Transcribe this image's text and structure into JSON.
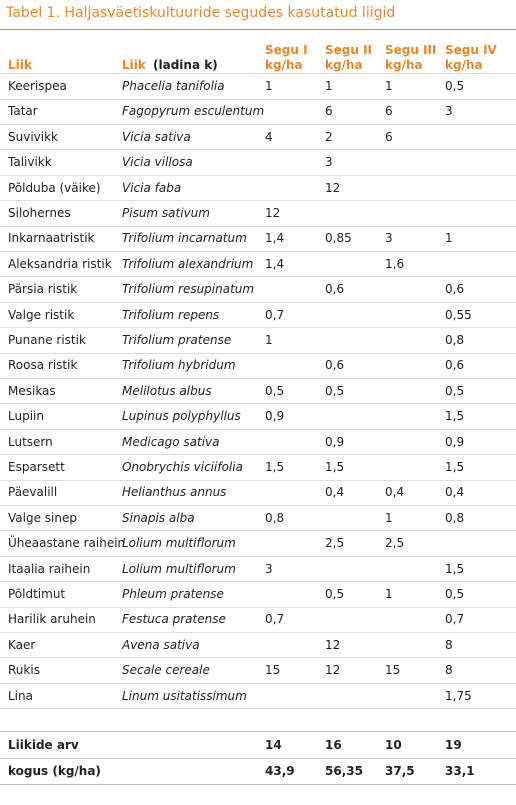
{
  "title": "Tabel 1. Haljasväetiskultuuride segudes kasutatud liigid",
  "table": {
    "header": {
      "species": "Liik",
      "latin": "Liik",
      "latin_note": "(ladina k)",
      "mixes": [
        {
          "name": "Segu I",
          "unit": "kg/ha"
        },
        {
          "name": "Segu II",
          "unit": "kg/ha"
        },
        {
          "name": "Segu III",
          "unit": "kg/ha"
        },
        {
          "name": "Segu IV",
          "unit": "kg/ha"
        }
      ]
    },
    "rows": [
      [
        "Keerispea",
        "Phacelia tanifolia",
        "1",
        "1",
        "1",
        "0,5"
      ],
      [
        "Tatar",
        "Fagopyrum esculentum",
        null,
        "6",
        "6",
        "3"
      ],
      [
        "Suvivikk",
        "Vicia sativa",
        "4",
        "2",
        "6",
        null
      ],
      [
        "Talivikk",
        "Vicia villosa",
        null,
        "3",
        null,
        null
      ],
      [
        "Põlduba (väike)",
        "Vicia faba",
        null,
        "12",
        null,
        null
      ],
      [
        "Silohernes",
        "Pisum sativum",
        "12",
        null,
        null,
        null
      ],
      [
        "Inkarnaatristik",
        "Trifolium incarnatum",
        "1,4",
        "0,85",
        "3",
        "1"
      ],
      [
        "Aleksandria ristik",
        "Trifolium alexandrium",
        "1,4",
        null,
        "1,6",
        null
      ],
      [
        "Pärsia ristik",
        "Trifolium resupinatum",
        null,
        "0,6",
        null,
        "0,6"
      ],
      [
        "Valge ristik",
        "Trifolium repens",
        "0,7",
        null,
        null,
        "0,55"
      ],
      [
        "Punane ristik",
        "Trifolium pratense",
        "1",
        null,
        null,
        "0,8"
      ],
      [
        "Roosa ristik",
        "Trifolium hybridum",
        null,
        "0,6",
        null,
        "0,6"
      ],
      [
        "Mesikas",
        "Melilotus albus",
        "0,5",
        "0,5",
        null,
        "0,5"
      ],
      [
        "Lupiin",
        "Lupinus polyphyllus",
        "0,9",
        null,
        null,
        "1,5"
      ],
      [
        "Lutsern",
        "Medicago sativa",
        null,
        "0,9",
        null,
        "0,9"
      ],
      [
        "Esparsett",
        "Onobrychis viciifolia",
        "1,5",
        "1,5",
        null,
        "1,5"
      ],
      [
        "Päevalill",
        "Helianthus annus",
        null,
        "0,4",
        "0,4",
        "0,4"
      ],
      [
        "Valge sinep",
        "Sinapis alba",
        "0,8",
        null,
        "1",
        "0,8"
      ],
      [
        "Üheaastane raihein",
        "Lolium multiflorum",
        null,
        "2,5",
        "2,5",
        null
      ],
      [
        "Itaalia raihein",
        "Lolium multiflorum",
        "3",
        null,
        null,
        "1,5"
      ],
      [
        "Põldtimut",
        "Phleum pratense",
        null,
        "0,5",
        "1",
        "0,5"
      ],
      [
        "Harilik aruhein",
        "Festuca pratense",
        "0,7",
        null,
        null,
        "0,7"
      ],
      [
        "Kaer",
        "Avena sativa",
        null,
        "12",
        null,
        "8"
      ],
      [
        "Rukis",
        "Secale cereale",
        "15",
        "12",
        "15",
        "8"
      ],
      [
        "Lina",
        "Linum usitatissimum",
        null,
        null,
        null,
        "1,75"
      ]
    ],
    "footer": [
      [
        "Liikide arv",
        null,
        "14",
        "16",
        "10",
        "19"
      ],
      [
        "kogus (kg/ha)",
        null,
        "43,9",
        "56,35",
        "37,5",
        "33,1"
      ]
    ]
  }
}
